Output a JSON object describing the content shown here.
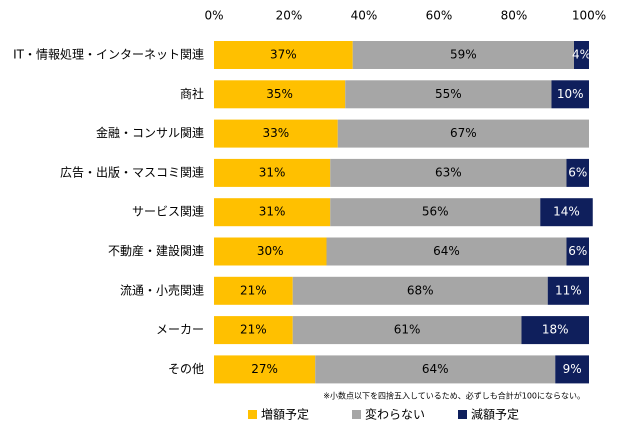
{
  "chart_data": {
    "type": "stacked-bar-horizontal",
    "categories": [
      "IT・情報処理・インターネット関連",
      "商社",
      "金融・コンサル関連",
      "広告・出版・マスコミ関連",
      "サービス関連",
      "不動産・建設関連",
      "流通・小売関連",
      "メーカー",
      "その他"
    ],
    "series": [
      {
        "name": "増額予定",
        "color": "#FFC000",
        "label_color": "#000000",
        "values": [
          37,
          35,
          33,
          31,
          31,
          30,
          21,
          21,
          27
        ],
        "value_labels": [
          "37%",
          "35%",
          "33%",
          "31%",
          "31%",
          "30%",
          "21%",
          "21%",
          "27%"
        ]
      },
      {
        "name": "変わらない",
        "color": "#A6A6A6",
        "label_color": "#000000",
        "values": [
          59,
          55,
          67,
          63,
          56,
          64,
          68,
          61,
          64
        ],
        "value_labels": [
          "59%",
          "55%",
          "67%",
          "63%",
          "56%",
          "64%",
          "68%",
          "61%",
          "64%"
        ]
      },
      {
        "name": "減額予定",
        "color": "#0F1F5C",
        "label_color": "#FFFFFF",
        "values": [
          4,
          10,
          null,
          6,
          14,
          6,
          11,
          18,
          9
        ],
        "value_labels": [
          "4%",
          "10%",
          null,
          "6%",
          "14%",
          "6%",
          "11%",
          "18%",
          "9%"
        ]
      }
    ],
    "xlim": [
      0,
      100
    ],
    "xticks": [
      {
        "value": 0,
        "label": "0%"
      },
      {
        "value": 20,
        "label": "20%"
      },
      {
        "value": 40,
        "label": "40%"
      },
      {
        "value": 60,
        "label": "60%"
      },
      {
        "value": 80,
        "label": "80%"
      },
      {
        "value": 100,
        "label": "100%"
      }
    ],
    "annotation": "※小数点以下を四捨五入しているため、必ずしも合計が100にならない。"
  }
}
